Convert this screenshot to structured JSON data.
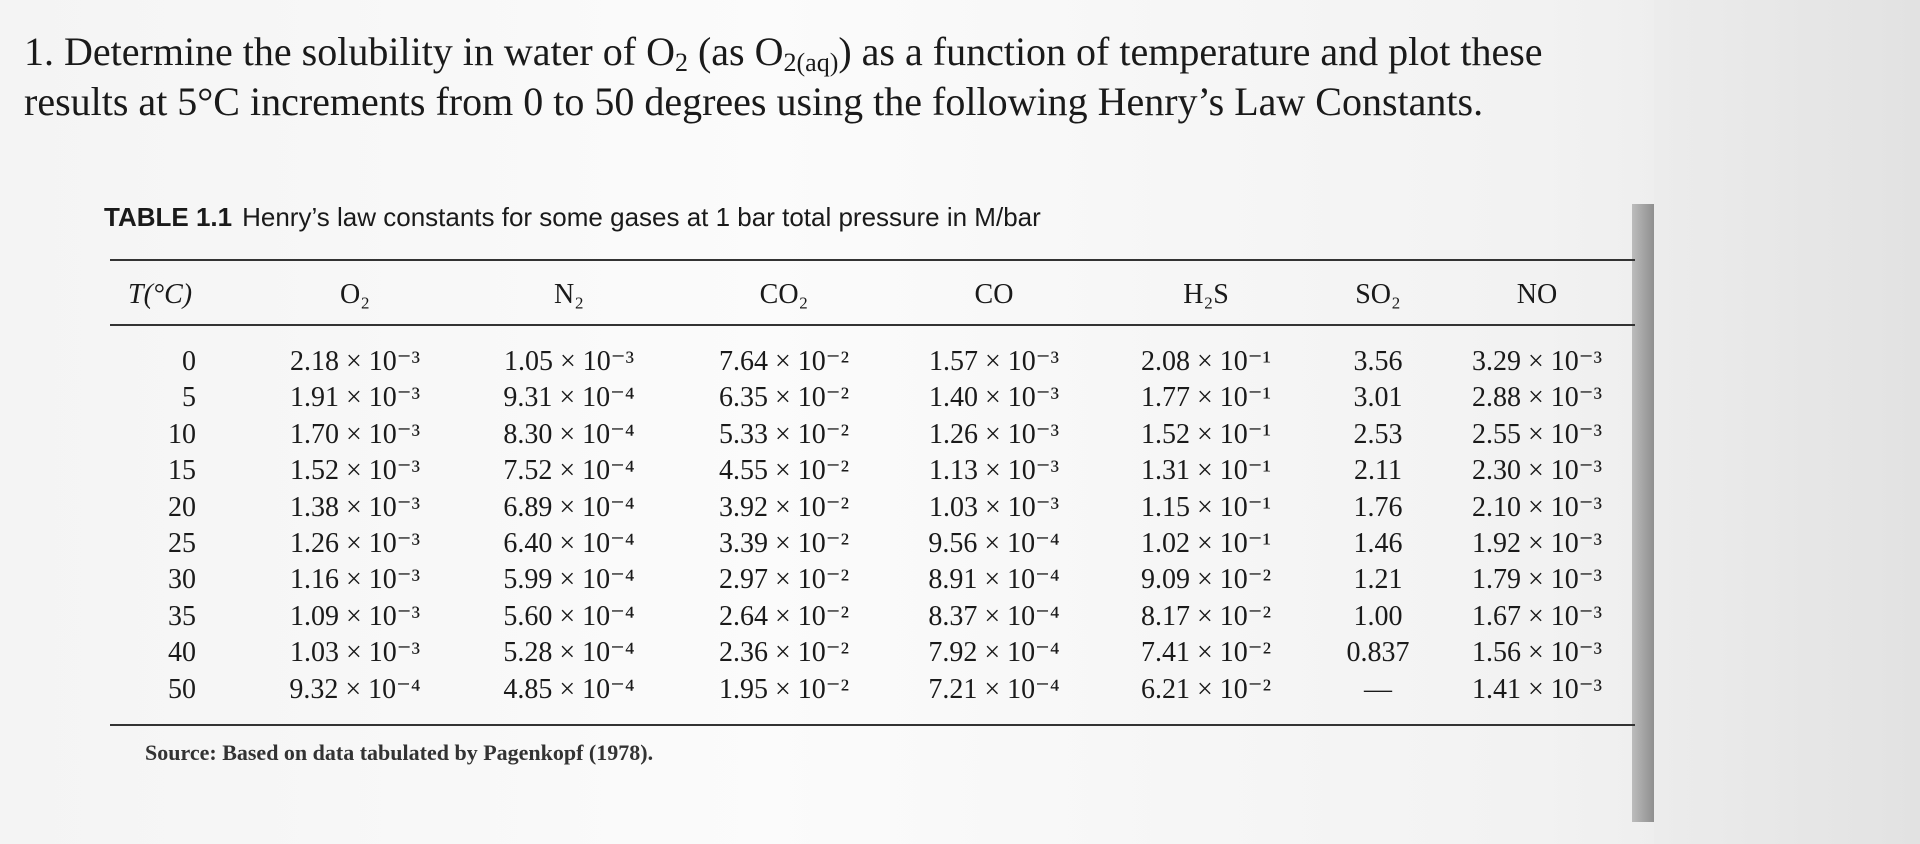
{
  "question": [
    "1. Determine the solubility in water of O",
    "2",
    " (as O",
    "2(aq)",
    ") as a function of temperature and plot these",
    "results at 5°C increments from 0 to 50 degrees using the following Henry’s Law Constants."
  ],
  "table": {
    "caption_label": "TABLE 1.1",
    "caption": "Henry’s law constants for some gases at 1 bar total pressure in M/bar",
    "header": [
      "T(°C)",
      "O₂",
      "N₂",
      "CO₂",
      "CO",
      "H₂S",
      "SO₂",
      "NO"
    ],
    "rows": [
      [
        0,
        "2.18 × 10⁻³",
        "1.05 × 10⁻³",
        "7.64 × 10⁻²",
        "1.57 × 10⁻³",
        "2.08 × 10⁻¹",
        "3.56",
        "3.29 × 10⁻³"
      ],
      [
        5,
        "1.91 × 10⁻³",
        "9.31 × 10⁻⁴",
        "6.35 × 10⁻²",
        "1.40 × 10⁻³",
        "1.77 × 10⁻¹",
        "3.01",
        "2.88 × 10⁻³"
      ],
      [
        10,
        "1.70 × 10⁻³",
        "8.30 × 10⁻⁴",
        "5.33 × 10⁻²",
        "1.26 × 10⁻³",
        "1.52 × 10⁻¹",
        "2.53",
        "2.55 × 10⁻³"
      ],
      [
        15,
        "1.52 × 10⁻³",
        "7.52 × 10⁻⁴",
        "4.55 × 10⁻²",
        "1.13 × 10⁻³",
        "1.31 × 10⁻¹",
        "2.11",
        "2.30 × 10⁻³"
      ],
      [
        20,
        "1.38 × 10⁻³",
        "6.89 × 10⁻⁴",
        "3.92 × 10⁻²",
        "1.03 × 10⁻³",
        "1.15 × 10⁻¹",
        "1.76",
        "2.10 × 10⁻³"
      ],
      [
        25,
        "1.26 × 10⁻³",
        "6.40 × 10⁻⁴",
        "3.39 × 10⁻²",
        "9.56 × 10⁻⁴",
        "1.02 × 10⁻¹",
        "1.46",
        "1.92 × 10⁻³"
      ],
      [
        30,
        "1.16 × 10⁻³",
        "5.99 × 10⁻⁴",
        "2.97 × 10⁻²",
        "8.91 × 10⁻⁴",
        "9.09 × 10⁻²",
        "1.21",
        "1.79 × 10⁻³"
      ],
      [
        35,
        "1.09 × 10⁻³",
        "5.60 × 10⁻⁴",
        "2.64 × 10⁻²",
        "8.37 × 10⁻⁴",
        "8.17 × 10⁻²",
        "1.00",
        "1.67 × 10⁻³"
      ],
      [
        40,
        "1.03 × 10⁻³",
        "5.28 × 10⁻⁴",
        "2.36 × 10⁻²",
        "7.92 × 10⁻⁴",
        "7.41 × 10⁻²",
        "0.837",
        "1.56 × 10⁻³"
      ],
      [
        50,
        "9.32 × 10⁻⁴",
        "4.85 × 10⁻⁴",
        "1.95 × 10⁻²",
        "7.21 × 10⁻⁴",
        "6.21 × 10⁻²",
        "—",
        "1.41 × 10⁻³"
      ]
    ],
    "source": "Source: Based on data tabulated by Pagenkopf (1978)."
  }
}
